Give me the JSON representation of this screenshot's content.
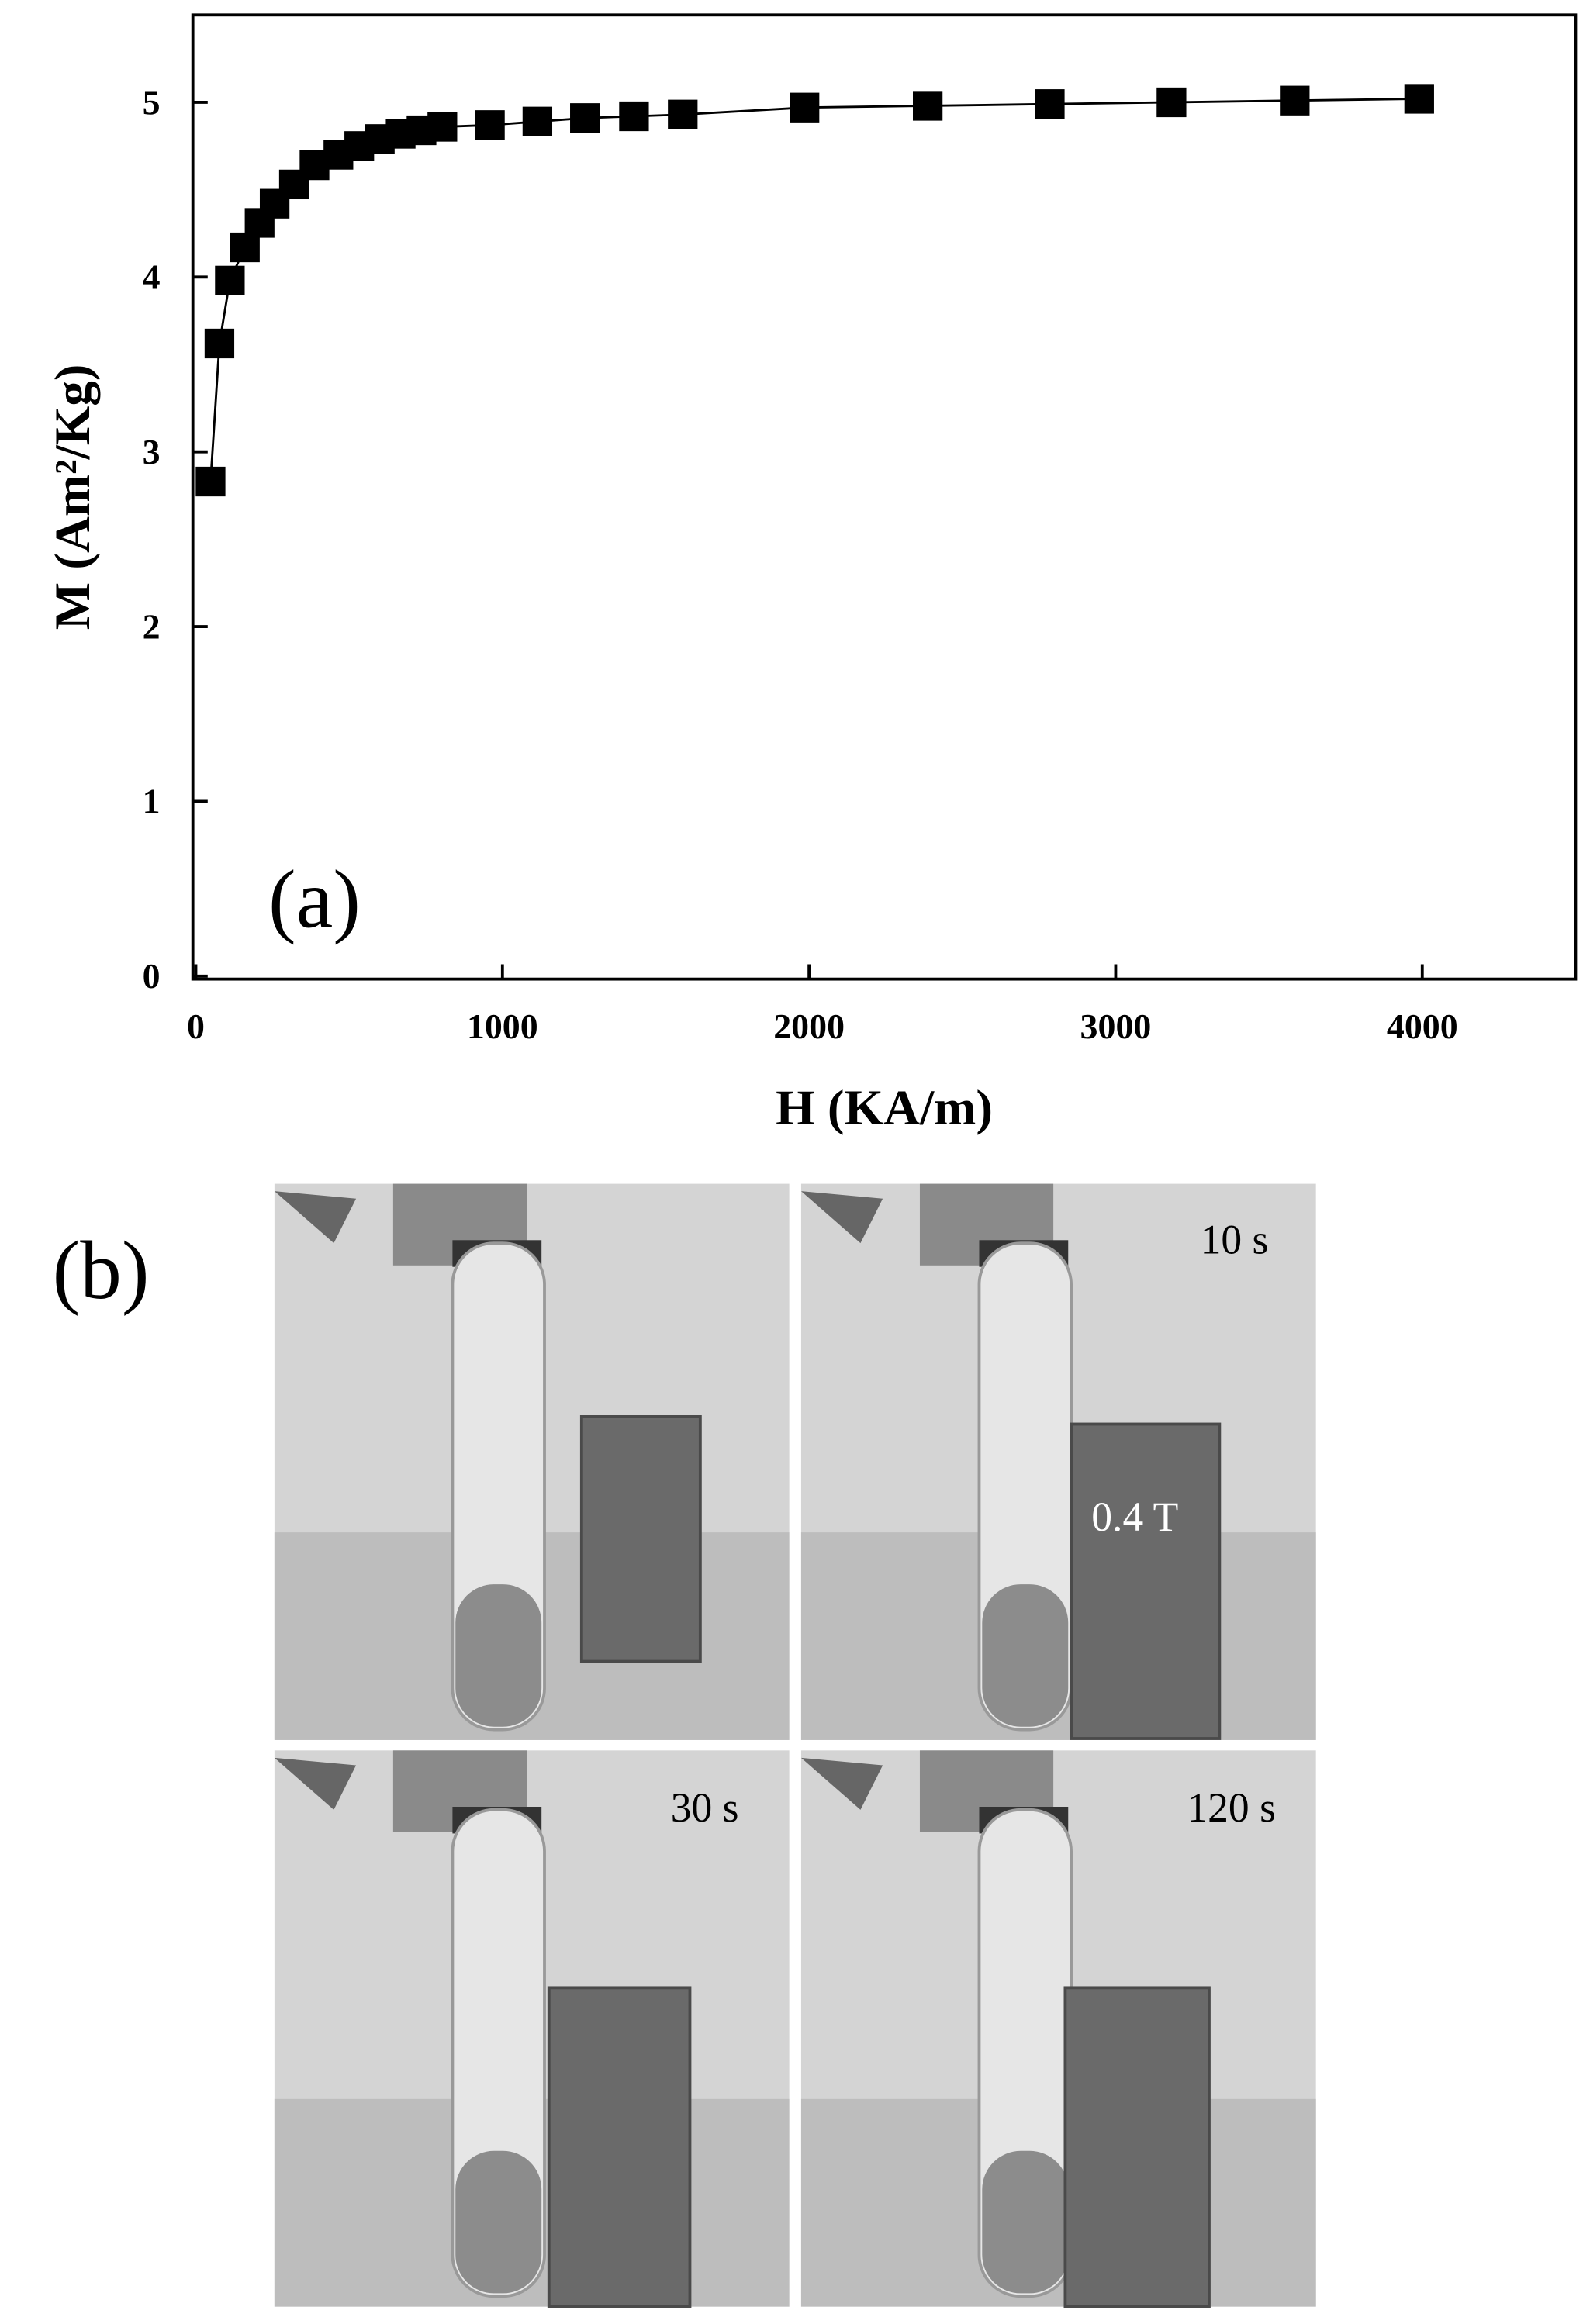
{
  "chart_data": {
    "type": "line",
    "x_label": "H (KA/m)",
    "y_label": "M (Am²/Kg)",
    "panel_label": "(a)",
    "x": [
      48,
      77,
      111,
      160,
      208,
      257,
      320,
      387,
      465,
      533,
      600,
      668,
      736,
      804,
      959,
      1114,
      1269,
      1429,
      1588,
      1985,
      2387,
      2785,
      3182,
      3584,
      3990
    ],
    "values": [
      2.83,
      3.62,
      3.98,
      4.17,
      4.31,
      4.42,
      4.53,
      4.64,
      4.7,
      4.75,
      4.79,
      4.82,
      4.84,
      4.86,
      4.87,
      4.89,
      4.91,
      4.92,
      4.93,
      4.97,
      4.98,
      4.99,
      5.0,
      5.01,
      5.02
    ],
    "color": "#000000",
    "xlim": [
      0,
      4500
    ],
    "xticks": [
      0,
      1000,
      2000,
      3000,
      4000
    ],
    "ylim": [
      0,
      5.5
    ],
    "yticks": [
      0,
      1,
      2,
      3,
      4,
      5
    ]
  },
  "figure_b": {
    "panel_label": "(b)",
    "annotations": [
      "10 s",
      "0.4 T",
      "30 s",
      "120 s"
    ]
  }
}
